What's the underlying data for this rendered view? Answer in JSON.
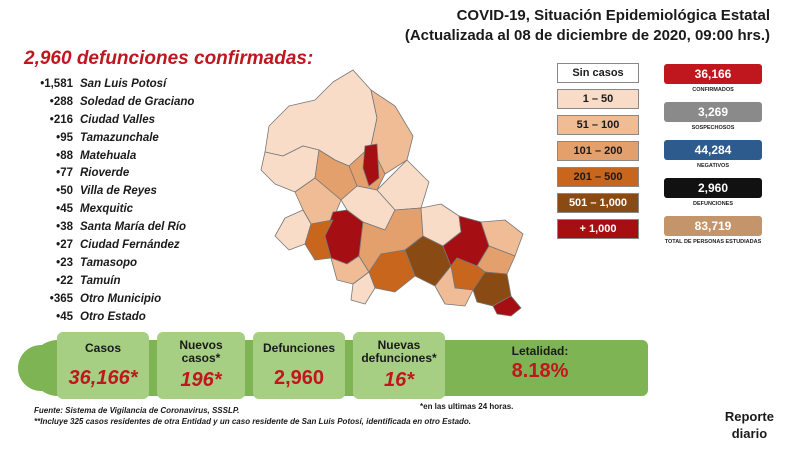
{
  "header": {
    "title": "COVID-19, Situación Epidemiológica Estatal",
    "subtitle": "(Actualizada al 08 de diciembre de 2020, 09:00 hrs.)"
  },
  "deaths_title": "2,960 defunciones confirmadas:",
  "municipalities": [
    {
      "count": "1,581",
      "name": "San Luis Potosí"
    },
    {
      "count": "288",
      "name": "Soledad de Graciano"
    },
    {
      "count": "216",
      "name": "Ciudad Valles"
    },
    {
      "count": "95",
      "name": "Tamazunchale"
    },
    {
      "count": "88",
      "name": "Matehuala"
    },
    {
      "count": "77",
      "name": "Rioverde"
    },
    {
      "count": "50",
      "name": "Villa de Reyes"
    },
    {
      "count": "45",
      "name": "Mexquitic"
    },
    {
      "count": "38",
      "name": "Santa María del Río"
    },
    {
      "count": "27",
      "name": "Ciudad Fernández"
    },
    {
      "count": "23",
      "name": "Tamasopo"
    },
    {
      "count": "22",
      "name": "Tamuín"
    },
    {
      "count": "365",
      "name": "Otro Municipio"
    },
    {
      "count": "45",
      "name": "Otro Estado"
    }
  ],
  "legend": [
    {
      "label": "Sin casos",
      "color": "#ffffff",
      "text_color": "#1a1a1a"
    },
    {
      "label": "1 – 50",
      "color": "#f8dcc8",
      "text_color": "#1a1a1a"
    },
    {
      "label": "51 – 100",
      "color": "#f0bc96",
      "text_color": "#1a1a1a"
    },
    {
      "label": "101 – 200",
      "color": "#e4a06c",
      "text_color": "#1a1a1a"
    },
    {
      "label": "201 – 500",
      "color": "#c8661e",
      "text_color": "#1a1a1a"
    },
    {
      "label": "501 – 1,000",
      "color": "#8a4a14",
      "text_color": "#ffffff"
    },
    {
      "label": "+ 1,000",
      "color": "#a50e12",
      "text_color": "#ffffff"
    }
  ],
  "stats": [
    {
      "value": "36,166",
      "label": "CONFIRMADOS",
      "color": "#c0161e"
    },
    {
      "value": "3,269",
      "label": "SOSPECHOSOS",
      "color": "#8a8a8a"
    },
    {
      "value": "44,284",
      "label": "NEGATIVOS",
      "color": "#2d5b8e"
    },
    {
      "value": "2,960",
      "label": "DEFUNCIONES",
      "color": "#111111"
    },
    {
      "value": "83,719",
      "label": "TOTAL DE PERSONAS ESTUDIADAS",
      "color": "#c4956a"
    }
  ],
  "summary": {
    "casos_label": "Casos",
    "casos_value": "36,166*",
    "nuevos_label": "Nuevos casos*",
    "nuevos_value": "196*",
    "defunciones_label": "Defunciones",
    "defunciones_value": "2,960",
    "nuevas_def_label": "Nuevas defunciones*",
    "nuevas_def_value": "16*",
    "letalidad_label": "Letalidad:",
    "letalidad_value": "8.18%"
  },
  "note_24": "*en las ultimas 24 horas.",
  "footer": {
    "source": "Fuente: Sistema de Vigilancia de Coronavirus, SSSLP.",
    "note": "**Incluye 325 casos residentes de otra Entidad y un caso residente de San Luis Potosí, identificada en otro Estado."
  },
  "reporte": {
    "line1": "Reporte",
    "line2": "diario"
  }
}
